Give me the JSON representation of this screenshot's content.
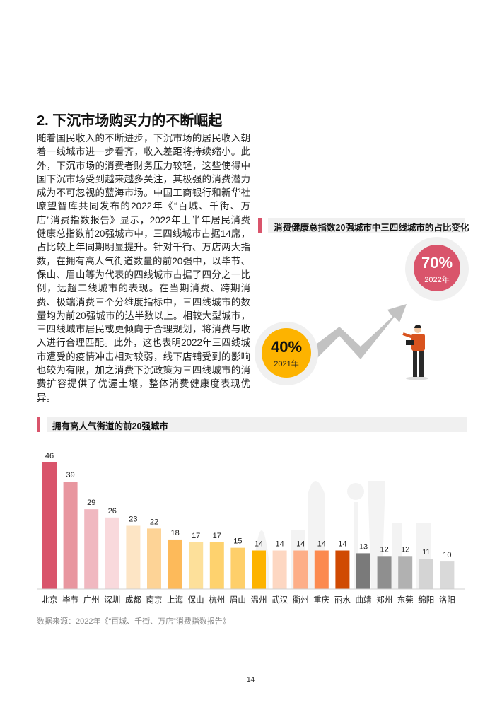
{
  "section_title": "2. 下沉市场购买力的不断崛起",
  "paragraph": "随着国民收入的不断进步，下沉市场的居民收入朝着一线城市进一步看齐，收入差距将持续缩小。此外，下沉市场的消费者财务压力较轻，这些使得中国下沉市场受到越来越多关注，其极强的消费潜力成为不可忽视的蓝海市场。中国工商银行和新华社瞭望智库共同发布的2022年《“百城、千街、万店”消费指数报告》显示，2022年上半年居民消费健康总指数前20强城市中，三四线城市占据14席，占比较上年同期明显提升。针对千街、万店两大指数，在拥有高人气街道数量的前20强中，以毕节、保山、眉山等为代表的四线城市占据了四分之一比例，远超二线城市的表现。在当期消费、跨期消费、极端消费三个分维度指标中，三四线城市的数量均为前20强城市的达半数以上。相较大型城市，三四线城市居民或更倾向于合理规划，将消费与收入进行合理匹配。此外，这也表明2022年三四线城市遭受的疫情冲击相对较弱，线下店铺受到的影响也较为有限，加之消费下沉政策为三四线城市的消费扩容提供了优渥土壤，整体消费健康度表现优异。",
  "infographic": {
    "title": "消费健康总指数20强城市中三四线城市的占比变化",
    "before": {
      "value": "40%",
      "year": "2021年",
      "color": "#fdb300"
    },
    "after": {
      "value": "70%",
      "year": "2022年",
      "color": "#d9546b"
    }
  },
  "chart_data": {
    "type": "bar",
    "title": "拥有高人气街道的前20强城市",
    "categories": [
      "北京",
      "毕节",
      "广州",
      "深圳",
      "成都",
      "南京",
      "上海",
      "保山",
      "杭州",
      "眉山",
      "温州",
      "武汉",
      "衢州",
      "重庆",
      "丽水",
      "曲靖",
      "郑州",
      "东莞",
      "绵阳",
      "洛阳"
    ],
    "values": [
      46,
      39,
      29,
      26,
      23,
      22,
      18,
      17,
      17,
      15,
      14,
      14,
      14,
      14,
      14,
      13,
      12,
      12,
      11,
      10
    ],
    "colors": [
      "#d9546b",
      "#e8969f",
      "#f0b8c0",
      "#f9d9dc",
      "#fde5c5",
      "#fdd396",
      "#fdba5a",
      "#fde09a",
      "#fed26e",
      "#fecf6a",
      "#fdb300",
      "#fdd7c2",
      "#fdae88",
      "#fc8a4f",
      "#d04a02",
      "#7a7a7a",
      "#8f8f8f",
      "#b1b1b1",
      "#d4d4d4",
      "#d9d9d9"
    ],
    "xlabel": "",
    "ylabel": "",
    "ylim": [
      0,
      46
    ],
    "grid": false
  },
  "source": "数据来源：2022年《“百城、千街、万店”消费指数报告》",
  "page_number": "14"
}
